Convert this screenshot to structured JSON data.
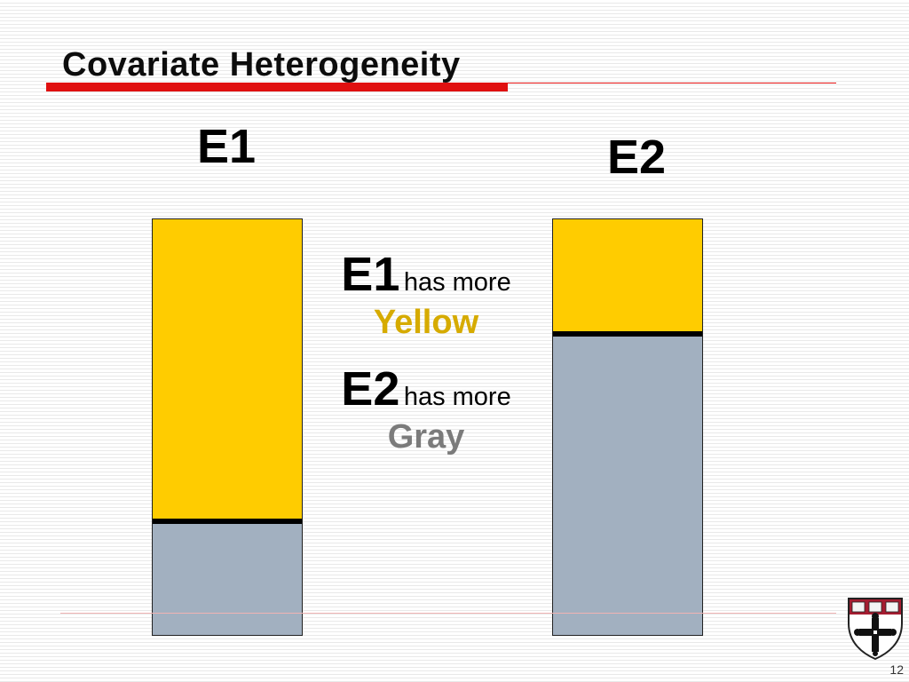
{
  "slide": {
    "title": "Covariate Heterogeneity",
    "page_number": "12"
  },
  "environments": [
    {
      "label": "E1",
      "yellow_fraction": 0.72
    },
    {
      "label": "E2",
      "yellow_fraction": 0.27
    }
  ],
  "comparison": {
    "first": {
      "env": "E1",
      "phrase": "has more",
      "color_word": "Yellow"
    },
    "second": {
      "env": "E2",
      "phrase": "has more",
      "color_word": "Gray"
    }
  },
  "colors": {
    "accent_red": "#e01010",
    "yellow": "#ffcc00",
    "gray": "#a2b0c0",
    "yellow_text": "#d6ab00",
    "gray_text": "#7b7b7b"
  },
  "logo": {
    "icon": "harvard-shield-icon",
    "lettering": [
      "VE",
      "RI",
      "TAS"
    ]
  }
}
